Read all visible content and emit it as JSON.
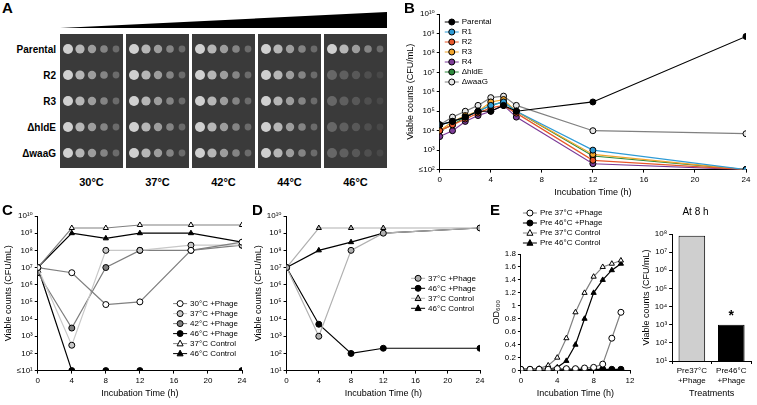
{
  "chart_data": [
    {
      "panel": "A",
      "type": "spot_assay",
      "rows": [
        "Parental",
        "R2",
        "R3",
        "ΔhldE",
        "ΔwaaG"
      ],
      "columns": [
        "30°C",
        "37°C",
        "42°C",
        "44°C",
        "46°C"
      ]
    },
    {
      "panel": "B",
      "type": "line",
      "x_label": "Incubation Time (h)",
      "y_label": "Viable counts (CFU/mL)",
      "log": "y",
      "grid": false,
      "legend": "upper left",
      "xlim": [
        0,
        24
      ],
      "xticks": [
        0,
        4,
        8,
        12,
        16,
        20,
        24
      ],
      "ylim": [
        100,
        10000000000
      ],
      "yticks": [
        {
          "value": 100,
          "label": "≤10²"
        },
        {
          "value": 1000,
          "label": "10³"
        },
        {
          "value": 10000,
          "label": "10⁴"
        },
        {
          "value": 100000,
          "label": "10⁵"
        },
        {
          "value": 1000000,
          "label": "10⁶"
        },
        {
          "value": 10000000,
          "label": "10⁷"
        },
        {
          "value": 100000000,
          "label": "10⁸"
        },
        {
          "value": 1000000000,
          "label": "10⁹"
        },
        {
          "value": 10000000000,
          "label": "10¹⁰"
        }
      ],
      "series": [
        {
          "name": "Parental",
          "color": "#000000",
          "marker": "circle",
          "x": [
            0,
            1,
            2,
            3,
            4,
            5,
            6,
            12,
            24
          ],
          "values": [
            20000,
            30000,
            50000,
            100000,
            100000,
            200000,
            100000,
            300000,
            700000000
          ]
        },
        {
          "name": "R1",
          "color": "#2e9bd6",
          "marker": "circle",
          "x": [
            0,
            1,
            2,
            3,
            4,
            5,
            6,
            12,
            24
          ],
          "values": [
            20000,
            30000,
            50000,
            100000,
            200000,
            300000,
            100000,
            1000,
            100
          ]
        },
        {
          "name": "R2",
          "color": "#e8582a",
          "marker": "circle",
          "x": [
            0,
            1,
            2,
            3,
            4,
            5,
            6,
            12,
            24
          ],
          "values": [
            10000,
            20000,
            40000,
            80000,
            150000,
            200000,
            80000,
            300,
            100
          ]
        },
        {
          "name": "R3",
          "color": "#f2a52b",
          "marker": "circle",
          "x": [
            0,
            1,
            2,
            3,
            4,
            5,
            6,
            12,
            24
          ],
          "values": [
            10000,
            30000,
            60000,
            100000,
            300000,
            400000,
            100000,
            600,
            100
          ]
        },
        {
          "name": "R4",
          "color": "#7d3c98",
          "marker": "circle",
          "x": [
            0,
            1,
            2,
            3,
            4,
            5,
            6,
            12,
            24
          ],
          "values": [
            5000,
            10000,
            30000,
            60000,
            100000,
            200000,
            50000,
            200,
            100
          ]
        },
        {
          "name": "ΔhldE",
          "color": "#2e8b3c",
          "marker": "circle",
          "x": [
            0,
            1,
            2,
            3,
            4,
            5,
            6,
            12,
            24
          ],
          "values": [
            10000,
            20000,
            50000,
            100000,
            200000,
            300000,
            100000,
            500,
            100
          ]
        },
        {
          "name": "ΔwaaG",
          "color": "#e6e6e6",
          "marker": "circle",
          "x": [
            0,
            1,
            2,
            3,
            4,
            5,
            6,
            12,
            24
          ],
          "values": [
            20000,
            50000,
            100000,
            200000,
            500000,
            600000,
            200000,
            10000,
            7000
          ]
        }
      ]
    },
    {
      "panel": "C",
      "type": "line",
      "x_label": "Incubation Time (h)",
      "y_label": "Viable counts (CFU/mL)",
      "log": "y",
      "grid": false,
      "legend": "lower right",
      "xlim": [
        0,
        24
      ],
      "xticks": [
        0,
        4,
        8,
        12,
        16,
        20,
        24
      ],
      "ylim": [
        10,
        10000000000
      ],
      "yticks": [
        {
          "value": 10,
          "label": "≤10¹"
        },
        {
          "value": 100,
          "label": "10²"
        },
        {
          "value": 1000,
          "label": "10³"
        },
        {
          "value": 10000,
          "label": "10⁴"
        },
        {
          "value": 100000,
          "label": "10⁵"
        },
        {
          "value": 1000000,
          "label": "10⁶"
        },
        {
          "value": 10000000,
          "label": "10⁷"
        },
        {
          "value": 100000000,
          "label": "10⁸"
        },
        {
          "value": 1000000000,
          "label": "10⁹"
        },
        {
          "value": 10000000000,
          "label": "10¹⁰"
        }
      ],
      "series": [
        {
          "name": "30°C +Phage",
          "color": "#ffffff",
          "marker": "circle",
          "x": [
            0,
            4,
            8,
            12,
            18,
            24
          ],
          "values": [
            10000000,
            5000000,
            70000,
            100000,
            100000000,
            300000000
          ]
        },
        {
          "name": "37°C +Phage",
          "color": "#c8c8c8",
          "marker": "circle",
          "x": [
            0,
            4,
            8,
            12,
            18,
            24
          ],
          "values": [
            10000000,
            300,
            100000000,
            100000000,
            200000000,
            200000000
          ]
        },
        {
          "name": "42°C +Phage",
          "color": "#7f7f7f",
          "marker": "circle",
          "x": [
            0,
            4,
            8,
            12,
            18,
            24
          ],
          "values": [
            5000000,
            3000,
            10000000,
            100000000,
            100000000,
            200000000
          ]
        },
        {
          "name": "46°C +Phage",
          "color": "#000000",
          "marker": "circle",
          "x": [
            0,
            4,
            8,
            12,
            24
          ],
          "values": [
            10000000,
            10,
            10,
            10,
            10
          ]
        },
        {
          "name": "37°C Control",
          "color": "#ffffff",
          "marker": "triangle",
          "x": [
            0,
            4,
            8,
            12,
            18,
            24
          ],
          "values": [
            10000000,
            2000000000,
            2000000000,
            3000000000,
            3000000000,
            3000000000
          ]
        },
        {
          "name": "46°C Control",
          "color": "#000000",
          "marker": "triangle",
          "x": [
            0,
            4,
            8,
            12,
            18,
            24
          ],
          "values": [
            10000000,
            1000000000,
            500000000,
            1000000000,
            1000000000,
            300000000
          ]
        }
      ]
    },
    {
      "panel": "D",
      "type": "line",
      "x_label": "Incubation Time (h)",
      "y_label": "Viable counts (CFU/mL)",
      "log": "y",
      "grid": false,
      "legend": "center right",
      "xlim": [
        0,
        24
      ],
      "xticks": [
        0,
        4,
        8,
        12,
        16,
        20,
        24
      ],
      "ylim": [
        10,
        10000000000
      ],
      "yticks": [
        {
          "value": 10,
          "label": "10¹"
        },
        {
          "value": 100,
          "label": "10²"
        },
        {
          "value": 1000,
          "label": "10³"
        },
        {
          "value": 10000,
          "label": "10⁴"
        },
        {
          "value": 100000,
          "label": "10⁵"
        },
        {
          "value": 1000000,
          "label": "10⁶"
        },
        {
          "value": 10000000,
          "label": "10⁷"
        },
        {
          "value": 100000000,
          "label": "10⁸"
        },
        {
          "value": 1000000000,
          "label": "10⁹"
        },
        {
          "value": 10000000000,
          "label": "10¹⁰"
        }
      ],
      "series": [
        {
          "name": "37°C +Phage",
          "color": "#b0b0b0",
          "marker": "circle",
          "x": [
            0,
            4,
            8,
            12,
            24
          ],
          "values": [
            10000000,
            1000,
            100000000,
            1000000000,
            2000000000
          ]
        },
        {
          "name": "46°C +Phage",
          "color": "#000000",
          "marker": "circle",
          "x": [
            0,
            4,
            8,
            12,
            24
          ],
          "values": [
            10000000,
            5000,
            100,
            200,
            200
          ]
        },
        {
          "name": "37°C Control",
          "color": "#b0b0b0",
          "marker": "triangle",
          "x": [
            0,
            4,
            8,
            12,
            24
          ],
          "values": [
            10000000,
            2000000000,
            2000000000,
            2000000000,
            2000000000
          ]
        },
        {
          "name": "46°C Control",
          "color": "#000000",
          "marker": "triangle",
          "x": [
            0,
            4,
            8,
            12,
            24
          ],
          "values": [
            10000000,
            100000000,
            300000000,
            1000000000,
            2000000000
          ]
        }
      ]
    },
    {
      "panel": "E",
      "type": "line",
      "x_label": "Incubation Time (h)",
      "y_label": "OD₆₀₀",
      "grid": false,
      "legend": "top",
      "xlim": [
        0,
        12
      ],
      "xticks": [
        0,
        4,
        8,
        12
      ],
      "ylim": [
        0,
        1.8
      ],
      "yticks": [
        0,
        0.2,
        0.4,
        0.6,
        0.8,
        1,
        1.2,
        1.4,
        1.6,
        1.8
      ],
      "series": [
        {
          "name": "Pre 37°C +Phage",
          "color": "#ffffff",
          "marker": "circle",
          "x": [
            0,
            1,
            2,
            3,
            4,
            5,
            6,
            7,
            8,
            9,
            10,
            11
          ],
          "values": [
            0.02,
            0.02,
            0.02,
            0.02,
            0.03,
            0.03,
            0.03,
            0.04,
            0.05,
            0.1,
            0.5,
            0.9
          ]
        },
        {
          "name": "Pre 46°C +Phage",
          "color": "#000000",
          "marker": "circle",
          "x": [
            0,
            1,
            2,
            3,
            4,
            5,
            6,
            7,
            8,
            9,
            10,
            11
          ],
          "values": [
            0.02,
            0.02,
            0.02,
            0.02,
            0.02,
            0.02,
            0.02,
            0.02,
            0.02,
            0.02,
            0.02,
            0.02
          ]
        },
        {
          "name": "Pre 37°C Control",
          "color": "#ffffff",
          "marker": "triangle",
          "x": [
            0,
            1,
            2,
            3,
            4,
            5,
            6,
            7,
            8,
            9,
            10,
            11
          ],
          "values": [
            0.02,
            0.02,
            0.03,
            0.08,
            0.2,
            0.5,
            0.9,
            1.2,
            1.45,
            1.6,
            1.65,
            1.7
          ]
        },
        {
          "name": "Pre 46°C Control",
          "color": "#000000",
          "marker": "triangle",
          "x": [
            0,
            1,
            2,
            3,
            4,
            5,
            6,
            7,
            8,
            9,
            10,
            11
          ],
          "values": [
            0.02,
            0.02,
            0.02,
            0.02,
            0.05,
            0.15,
            0.4,
            0.8,
            1.2,
            1.4,
            1.55,
            1.65
          ]
        }
      ]
    },
    {
      "type": "bar",
      "title": "At 8 h",
      "x_label": "Treatments",
      "y_label": "Viable counts (CFU/mL)",
      "log": "y",
      "grid": false,
      "categories": [
        "Pre37°C +Phage",
        "Pre46°C +Phage"
      ],
      "values": [
        80000000,
        1000
      ],
      "colors": [
        "#cfcfcf",
        "#000000"
      ],
      "ylim": [
        10,
        100000000
      ],
      "yticks": [
        {
          "value": 10,
          "label": "10¹"
        },
        {
          "value": 100,
          "label": "10²"
        },
        {
          "value": 1000,
          "label": "10³"
        },
        {
          "value": 10000,
          "label": "10⁴"
        },
        {
          "value": 100000,
          "label": "10⁵"
        },
        {
          "value": 1000000,
          "label": "10⁶"
        },
        {
          "value": 10000000,
          "label": "10⁷"
        },
        {
          "value": 100000000,
          "label": "10⁸"
        }
      ],
      "annotations": [
        {
          "text": "*",
          "category": "Pre46°C +Phage"
        }
      ]
    }
  ]
}
